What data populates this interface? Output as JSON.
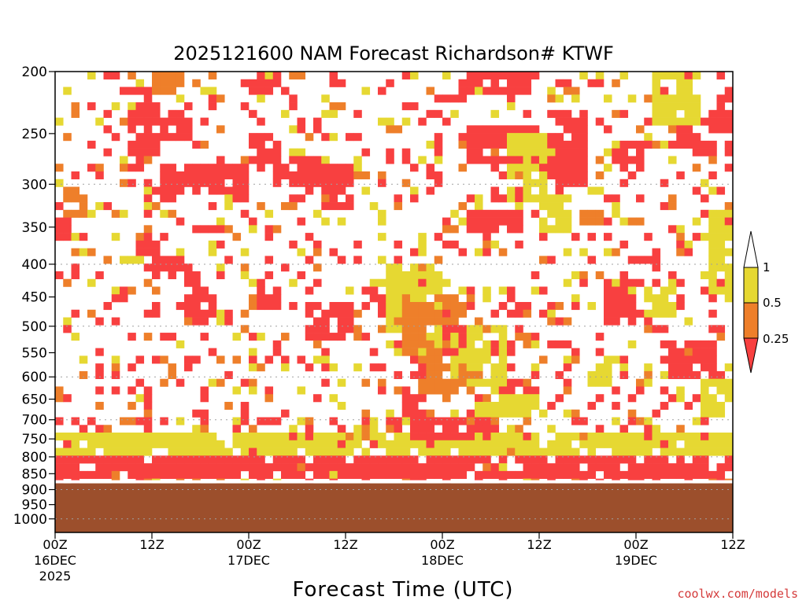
{
  "chart_data": {
    "type": "heatmap",
    "title": "2025121600 NAM Forecast Richardson# KTWF",
    "xlabel": "Forecast Time (UTC)",
    "ylabel": "",
    "credit": "coolwx.com/models",
    "y_ticks": [
      "200",
      "250",
      "300",
      "350",
      "400",
      "450",
      "500",
      "550",
      "600",
      "650",
      "700",
      "750",
      "800",
      "850",
      "900",
      "950",
      "1000"
    ],
    "y_values": [
      200,
      250,
      300,
      350,
      400,
      450,
      500,
      550,
      600,
      650,
      700,
      750,
      800,
      850,
      900,
      950,
      1000
    ],
    "y_range": [
      200,
      1050
    ],
    "x_range_hours": [
      0,
      84
    ],
    "x_ticks": [
      {
        "hour": 0,
        "label": "00Z",
        "date": "16DEC",
        "year": "2025"
      },
      {
        "hour": 12,
        "label": "12Z",
        "date": "",
        "year": ""
      },
      {
        "hour": 24,
        "label": "00Z",
        "date": "17DEC",
        "year": ""
      },
      {
        "hour": 36,
        "label": "12Z",
        "date": "",
        "year": ""
      },
      {
        "hour": 48,
        "label": "00Z",
        "date": "18DEC",
        "year": ""
      },
      {
        "hour": 60,
        "label": "12Z",
        "date": "",
        "year": ""
      },
      {
        "hour": 72,
        "label": "00Z",
        "date": "19DEC",
        "year": ""
      },
      {
        "hour": 84,
        "label": "12Z",
        "date": "",
        "year": ""
      }
    ],
    "gridlines_hpa": [
      300,
      400,
      500,
      600,
      700,
      800,
      900,
      1000
    ],
    "legend": {
      "levels": [
        {
          "label": "1",
          "range": "0.5-1",
          "color": "#e6d832"
        },
        {
          "label": "0.5",
          "range": "0.25-0.5",
          "color": "#ee7f2a"
        },
        {
          "label": "0.25",
          "range": "<0.25",
          "color": "#f84040"
        }
      ]
    },
    "categories": [
      {
        "name": "Ri < 0.25",
        "color": "#f84040"
      },
      {
        "name": "0.25 ≤ Ri < 0.5",
        "color": "#ee7f2a"
      },
      {
        "name": "0.5 ≤ Ri < 1",
        "color": "#e6d832"
      },
      {
        "name": "below ground",
        "color": "#9c4f2c"
      }
    ],
    "ground_level_hpa": 880,
    "regions": [
      {
        "h": [
          9.5,
          12.5
        ],
        "p": [
          210,
          290
        ],
        "level": 2
      },
      {
        "h": [
          12,
          16
        ],
        "p": [
          200,
          220
        ],
        "level": 1
      },
      {
        "h": [
          14,
          17
        ],
        "p": [
          230,
          260
        ],
        "level": 2
      },
      {
        "h": [
          13,
          24
        ],
        "p": [
          280,
          310
        ],
        "level": 2
      },
      {
        "h": [
          24,
          28
        ],
        "p": [
          250,
          280
        ],
        "level": 2
      },
      {
        "h": [
          24,
          28
        ],
        "p": [
          200,
          220
        ],
        "level": 2
      },
      {
        "h": [
          27,
          34
        ],
        "p": [
          270,
          300
        ],
        "level": 2
      },
      {
        "h": [
          33,
          37
        ],
        "p": [
          280,
          330
        ],
        "level": 2
      },
      {
        "h": [
          1,
          4
        ],
        "p": [
          300,
          340
        ],
        "level": 1
      },
      {
        "h": [
          0,
          2
        ],
        "p": [
          340,
          380
        ],
        "level": 2
      },
      {
        "h": [
          10,
          13
        ],
        "p": [
          360,
          390
        ],
        "level": 2
      },
      {
        "h": [
          12,
          17
        ],
        "p": [
          390,
          420
        ],
        "level": 2
      },
      {
        "h": [
          16,
          20
        ],
        "p": [
          440,
          500
        ],
        "level": 2
      },
      {
        "h": [
          25,
          28
        ],
        "p": [
          430,
          470
        ],
        "level": 2
      },
      {
        "h": [
          31,
          37
        ],
        "p": [
          460,
          520
        ],
        "level": 2
      },
      {
        "h": [
          38,
          41
        ],
        "p": [
          430,
          480
        ],
        "level": 2
      },
      {
        "h": [
          41,
          48
        ],
        "p": [
          400,
          560
        ],
        "level": 0
      },
      {
        "h": [
          43,
          51
        ],
        "p": [
          440,
          560
        ],
        "level": 1
      },
      {
        "h": [
          45,
          53
        ],
        "p": [
          560,
          640
        ],
        "level": 1
      },
      {
        "h": [
          49,
          56
        ],
        "p": [
          500,
          620
        ],
        "level": 0
      },
      {
        "h": [
          52,
          60
        ],
        "p": [
          630,
          700
        ],
        "level": 0
      },
      {
        "h": [
          44,
          47
        ],
        "p": [
          560,
          600
        ],
        "level": 2
      },
      {
        "h": [
          48,
          51
        ],
        "p": [
          500,
          560
        ],
        "level": 2
      },
      {
        "h": [
          43,
          46
        ],
        "p": [
          640,
          700
        ],
        "level": 2
      },
      {
        "h": [
          50,
          60
        ],
        "p": [
          200,
          220
        ],
        "level": 2
      },
      {
        "h": [
          51,
          60
        ],
        "p": [
          240,
          280
        ],
        "level": 2
      },
      {
        "h": [
          51,
          58
        ],
        "p": [
          330,
          360
        ],
        "level": 2
      },
      {
        "h": [
          56,
          61
        ],
        "p": [
          250,
          320
        ],
        "level": 0
      },
      {
        "h": [
          60,
          64
        ],
        "p": [
          310,
          360
        ],
        "level": 0
      },
      {
        "h": [
          61,
          66
        ],
        "p": [
          230,
          300
        ],
        "level": 2
      },
      {
        "h": [
          65,
          68
        ],
        "p": [
          330,
          350
        ],
        "level": 1
      },
      {
        "h": [
          70,
          73
        ],
        "p": [
          260,
          290
        ],
        "level": 2
      },
      {
        "h": [
          77,
          82
        ],
        "p": [
          240,
          270
        ],
        "level": 2
      },
      {
        "h": [
          74,
          80
        ],
        "p": [
          200,
          240
        ],
        "level": 0
      },
      {
        "h": [
          81,
          84
        ],
        "p": [
          220,
          250
        ],
        "level": 2
      },
      {
        "h": [
          68,
          72
        ],
        "p": [
          420,
          500
        ],
        "level": 2
      },
      {
        "h": [
          73,
          77
        ],
        "p": [
          430,
          480
        ],
        "level": 0
      },
      {
        "h": [
          76,
          82
        ],
        "p": [
          530,
          600
        ],
        "level": 2
      },
      {
        "h": [
          80,
          84
        ],
        "p": [
          600,
          700
        ],
        "level": 0
      },
      {
        "h": [
          81,
          84
        ],
        "p": [
          330,
          450
        ],
        "level": 0
      },
      {
        "h": [
          66,
          70
        ],
        "p": [
          560,
          620
        ],
        "level": 0
      },
      {
        "h": [
          0,
          84
        ],
        "p": [
          730,
          800
        ],
        "level": 0
      },
      {
        "h": [
          0,
          84
        ],
        "p": [
          800,
          870
        ],
        "level": 2
      },
      {
        "h": [
          44,
          54
        ],
        "p": [
          700,
          760
        ],
        "level": 2
      }
    ]
  }
}
